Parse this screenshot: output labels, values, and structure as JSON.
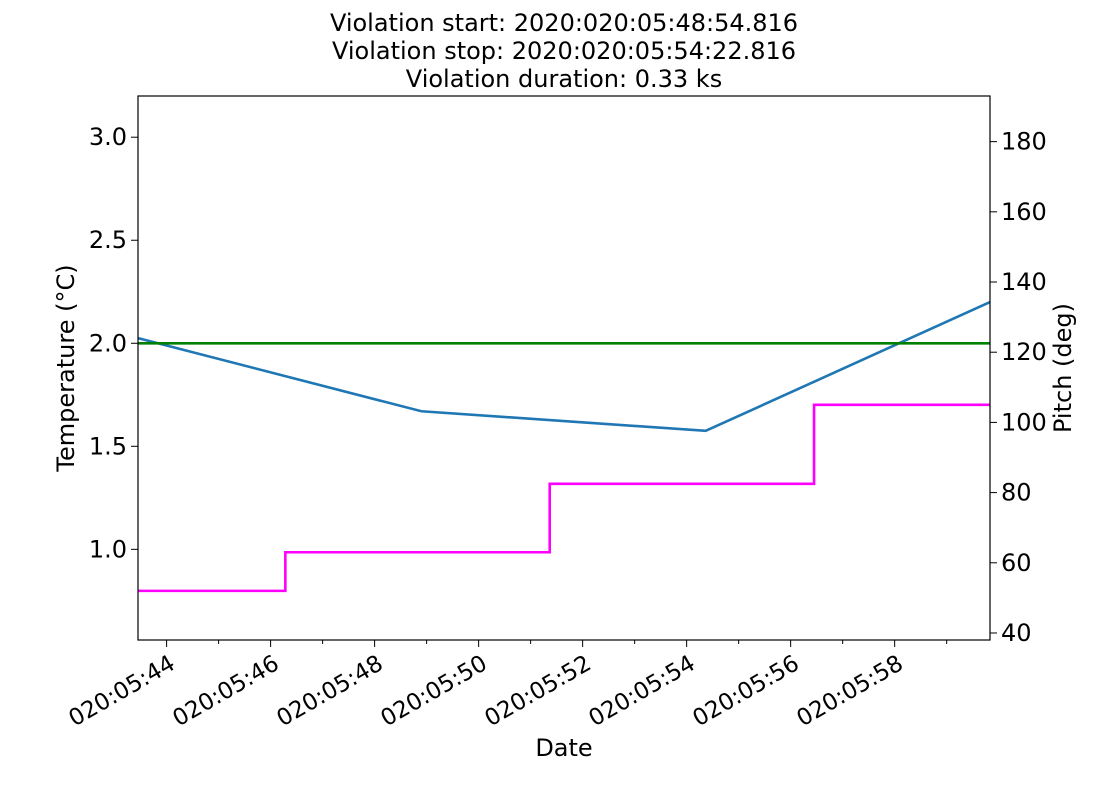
{
  "title_lines": [
    "Violation start: 2020:020:05:48:54.816",
    "Violation stop: 2020:020:05:54:22.816",
    "Violation duration: 0.33 ks"
  ],
  "chart_data": {
    "type": "line",
    "xlabel": "Date",
    "ylabel_left": "Temperature ($^\\circ$C)",
    "ylabel_left_display": "Temperature (°C)",
    "ylabel_right": "Pitch (deg)",
    "x_time_range": [
      "05:43:27",
      "05:59:50"
    ],
    "x_ticks": [
      "020:05:44",
      "020:05:46",
      "020:05:48",
      "020:05:50",
      "020:05:52",
      "020:05:54",
      "020:05:56",
      "020:05:58"
    ],
    "ylim_left": [
      0.56,
      3.2
    ],
    "yticks_left": [
      "1.0",
      "1.5",
      "2.0",
      "2.5",
      "3.0"
    ],
    "ylim_right": [
      38,
      193
    ],
    "yticks_right": [
      "40",
      "60",
      "80",
      "100",
      "120",
      "140",
      "160",
      "180"
    ],
    "grid": false,
    "colors": {
      "temperature": "#1f77b4",
      "limit": "#008000",
      "pitch": "#ff00ff"
    },
    "series": [
      {
        "axis": "left",
        "color": "#1f77b4",
        "points": [
          {
            "t": "05:43:27",
            "v": 2.025
          },
          {
            "t": "05:48:54",
            "v": 1.67
          },
          {
            "t": "05:54:22",
            "v": 1.575
          },
          {
            "t": "05:59:50",
            "v": 2.2
          }
        ]
      },
      {
        "axis": "left",
        "color": "#008000",
        "points": [
          {
            "t": "05:43:27",
            "v": 2.0
          },
          {
            "t": "05:59:50",
            "v": 2.0
          }
        ]
      },
      {
        "axis": "right",
        "step": true,
        "color": "#ff00ff",
        "points": [
          {
            "t": "05:43:27",
            "v": 52
          },
          {
            "t": "05:46:17",
            "v": 63
          },
          {
            "t": "05:51:22",
            "v": 82.5
          },
          {
            "t": "05:56:27",
            "v": 105
          },
          {
            "t": "05:59:50",
            "v": 105
          }
        ]
      }
    ]
  }
}
